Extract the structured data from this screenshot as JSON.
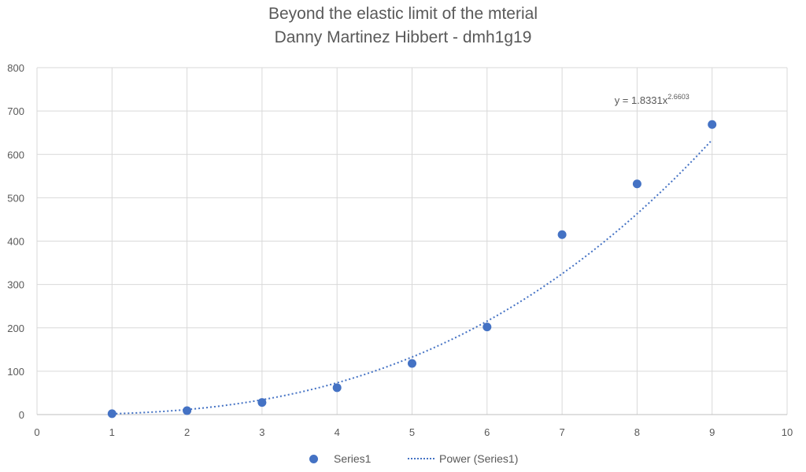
{
  "chart_data": {
    "type": "scatter",
    "title": "Beyond the elastic limit of the mterial",
    "subtitle": "Danny Martinez Hibbert - dmh1g19",
    "xlim": [
      0,
      10
    ],
    "ylim": [
      0,
      800
    ],
    "x_ticks": [
      "0",
      "1",
      "2",
      "3",
      "4",
      "5",
      "6",
      "7",
      "8",
      "9",
      "10"
    ],
    "y_ticks": [
      "0",
      "100",
      "200",
      "300",
      "400",
      "500",
      "600",
      "700",
      "800"
    ],
    "grid": true,
    "legend_position": "bottom",
    "series": [
      {
        "name": "Series1",
        "x": [
          1,
          2,
          3,
          4,
          5,
          6,
          7,
          8,
          9
        ],
        "y": [
          2,
          9,
          28,
          62,
          118,
          202,
          415,
          532,
          669
        ],
        "color": "#4472c4"
      }
    ],
    "trendline": {
      "name": "Power (Series1)",
      "type": "power",
      "a": 1.8331,
      "b": 2.6603,
      "label_prefix": "y = 1.8331x",
      "label_exponent": "2.6603",
      "color": "#4472c4"
    }
  }
}
